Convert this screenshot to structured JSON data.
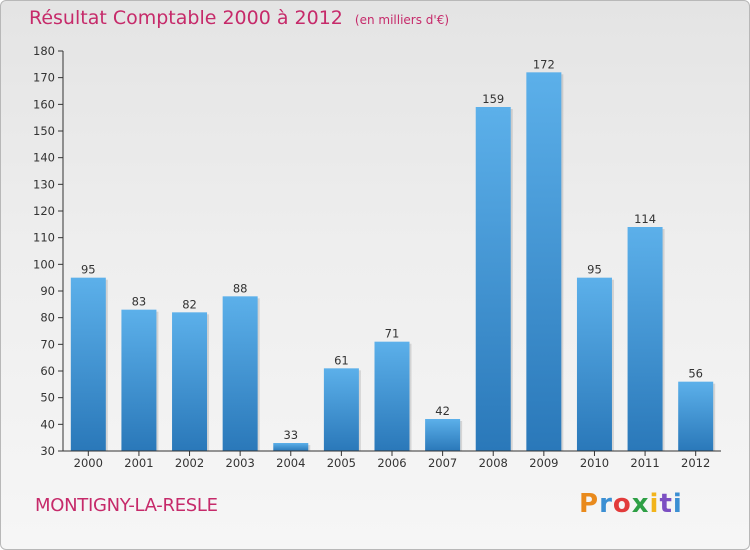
{
  "header": {
    "title": "Résultat Comptable 2000 à 2012",
    "subtitle": "(en milliers d'€)"
  },
  "footer": {
    "place": "MONTIGNY-LA-RESLE",
    "logo": "Proxiti",
    "logo_colors": [
      "#e98a1c",
      "#3b8fd3",
      "#e23b3b",
      "#2e9f45",
      "#f2b41b",
      "#7b4fc2",
      "#3b8fd3"
    ]
  },
  "colors": {
    "bar_top": "#5cb0ea",
    "bar_bottom": "#2a78b9",
    "accent": "#c62a6a",
    "axis": "#333333"
  },
  "chart_data": {
    "type": "bar",
    "title": "Résultat Comptable 2000 à 2012",
    "subtitle": "(en milliers d'€)",
    "categories": [
      "2000",
      "2001",
      "2002",
      "2003",
      "2004",
      "2005",
      "2006",
      "2007",
      "2008",
      "2009",
      "2010",
      "2011",
      "2012"
    ],
    "values": [
      95,
      83,
      82,
      88,
      33,
      61,
      71,
      42,
      159,
      172,
      95,
      114,
      56
    ],
    "ylim": [
      30,
      180
    ],
    "yticks": [
      30,
      40,
      50,
      60,
      70,
      80,
      90,
      100,
      110,
      120,
      130,
      140,
      150,
      160,
      170,
      180
    ],
    "grid": false,
    "data_labels": true
  }
}
